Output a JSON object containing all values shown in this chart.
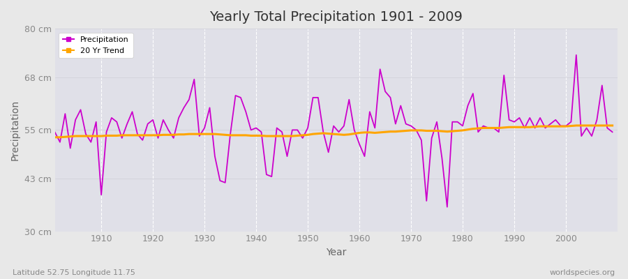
{
  "title": "Yearly Total Precipitation 1901 - 2009",
  "xlabel": "Year",
  "ylabel": "Precipitation",
  "lat_lon_label": "Latitude 52.75 Longitude 11.75",
  "source_label": "worldspecies.org",
  "legend_precipitation": "Precipitation",
  "legend_trend": "20 Yr Trend",
  "ylim": [
    30,
    80
  ],
  "yticks": [
    30,
    43,
    55,
    68,
    80
  ],
  "ytick_labels": [
    "30 cm",
    "43 cm",
    "55 cm",
    "68 cm",
    "80 cm"
  ],
  "years": [
    1901,
    1902,
    1903,
    1904,
    1905,
    1906,
    1907,
    1908,
    1909,
    1910,
    1911,
    1912,
    1913,
    1914,
    1915,
    1916,
    1917,
    1918,
    1919,
    1920,
    1921,
    1922,
    1923,
    1924,
    1925,
    1926,
    1927,
    1928,
    1929,
    1930,
    1931,
    1932,
    1933,
    1934,
    1935,
    1936,
    1937,
    1938,
    1939,
    1940,
    1941,
    1942,
    1943,
    1944,
    1945,
    1946,
    1947,
    1948,
    1949,
    1950,
    1951,
    1952,
    1953,
    1954,
    1955,
    1956,
    1957,
    1958,
    1959,
    1960,
    1961,
    1962,
    1963,
    1964,
    1965,
    1966,
    1967,
    1968,
    1969,
    1970,
    1971,
    1972,
    1973,
    1974,
    1975,
    1976,
    1977,
    1978,
    1979,
    1980,
    1981,
    1982,
    1983,
    1984,
    1985,
    1986,
    1987,
    1988,
    1989,
    1990,
    1991,
    1992,
    1993,
    1994,
    1995,
    1996,
    1997,
    1998,
    1999,
    2000,
    2001,
    2002,
    2003,
    2004,
    2005,
    2006,
    2007,
    2008,
    2009
  ],
  "precipitation": [
    54.5,
    52.0,
    59.0,
    50.5,
    57.5,
    60.0,
    54.0,
    52.0,
    57.0,
    39.0,
    54.5,
    58.0,
    57.0,
    53.0,
    56.5,
    59.5,
    54.0,
    52.5,
    56.5,
    57.5,
    53.0,
    57.5,
    55.0,
    53.0,
    58.0,
    60.5,
    62.5,
    67.5,
    53.5,
    55.5,
    60.5,
    48.5,
    42.5,
    42.0,
    54.0,
    63.5,
    63.0,
    59.5,
    55.0,
    55.5,
    54.5,
    44.0,
    43.5,
    55.5,
    54.5,
    48.5,
    55.0,
    55.0,
    53.0,
    55.5,
    63.0,
    63.0,
    54.5,
    49.5,
    56.0,
    54.5,
    56.0,
    62.5,
    55.0,
    51.5,
    48.5,
    59.5,
    55.5,
    70.0,
    64.5,
    63.0,
    56.5,
    61.0,
    56.5,
    56.0,
    55.0,
    52.5,
    37.5,
    53.0,
    57.0,
    48.0,
    36.0,
    57.0,
    57.0,
    56.0,
    61.0,
    64.0,
    54.5,
    56.0,
    55.5,
    55.5,
    54.5,
    68.5,
    57.5,
    57.0,
    58.0,
    55.5,
    58.0,
    55.5,
    58.0,
    55.5,
    56.5,
    57.5,
    56.0,
    56.0,
    57.0,
    73.5,
    53.5,
    55.5,
    53.5,
    57.5,
    66.0,
    55.5,
    54.5
  ],
  "trend": [
    53.2,
    53.2,
    53.3,
    53.4,
    53.5,
    53.5,
    53.5,
    53.5,
    53.5,
    53.5,
    53.6,
    53.6,
    53.6,
    53.7,
    53.7,
    53.7,
    53.7,
    53.7,
    53.7,
    53.7,
    53.7,
    53.8,
    53.8,
    53.8,
    53.9,
    53.9,
    54.0,
    54.0,
    54.0,
    54.0,
    54.0,
    54.0,
    53.9,
    53.8,
    53.7,
    53.7,
    53.7,
    53.7,
    53.6,
    53.6,
    53.6,
    53.5,
    53.5,
    53.5,
    53.5,
    53.5,
    53.5,
    53.6,
    53.7,
    53.8,
    54.0,
    54.1,
    54.2,
    54.1,
    54.0,
    53.9,
    53.8,
    53.9,
    54.1,
    54.3,
    54.4,
    54.4,
    54.3,
    54.4,
    54.5,
    54.6,
    54.6,
    54.7,
    54.8,
    54.9,
    54.9,
    54.9,
    54.8,
    54.8,
    54.8,
    54.7,
    54.6,
    54.7,
    54.8,
    54.9,
    55.1,
    55.3,
    55.4,
    55.5,
    55.5,
    55.5,
    55.5,
    55.6,
    55.7,
    55.7,
    55.7,
    55.7,
    55.7,
    55.8,
    55.9,
    55.9,
    55.9,
    55.9,
    55.9,
    55.9,
    56.0,
    56.1,
    56.1,
    56.1,
    56.1,
    56.1,
    56.1,
    56.1,
    56.1
  ],
  "precip_color": "#cc00cc",
  "trend_color": "#FFA500",
  "bg_color": "#e8e8e8",
  "plot_bg_color": "#e0e0e8",
  "grid_color_x": "#ffffff",
  "grid_color_y": "#d0d0d8",
  "title_color": "#333333",
  "label_color": "#666666",
  "tick_color": "#888888"
}
